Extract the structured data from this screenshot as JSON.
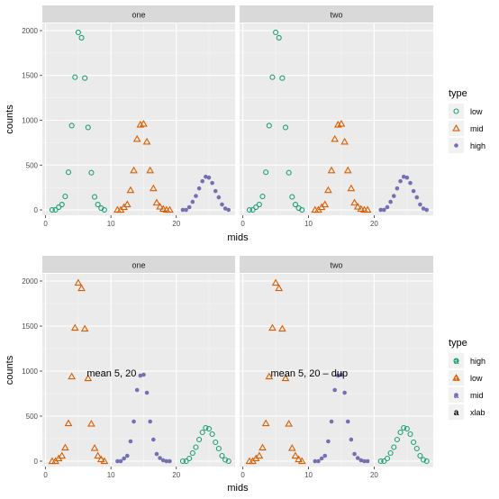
{
  "chart_data": [
    {
      "type": "scatter",
      "facets": [
        "one",
        "two"
      ],
      "xlabel": "mids",
      "ylabel": "counts",
      "xlim": [
        -0.5,
        29
      ],
      "ylim": [
        -60,
        2080
      ],
      "x_ticks": [
        0,
        10,
        20
      ],
      "y_ticks": [
        0,
        500,
        1000,
        1500,
        2000
      ],
      "grid": true,
      "legend_position": "right",
      "legend_title": "type",
      "series": [
        {
          "name": "low",
          "shape": "circle",
          "color": "#1B9E77",
          "x": [
            1,
            1.5,
            2,
            2.5,
            3,
            3.5,
            4,
            4.5,
            5,
            5.5,
            6,
            6.5,
            7,
            7.5,
            8,
            8.5,
            9
          ],
          "y": [
            0,
            0,
            30,
            60,
            150,
            420,
            940,
            1480,
            1980,
            1920,
            1470,
            920,
            415,
            145,
            60,
            20,
            0
          ]
        },
        {
          "name": "mid",
          "shape": "triangle",
          "color": "#D95F02",
          "x": [
            11,
            11.5,
            12,
            12.5,
            13,
            13.5,
            14,
            14.5,
            15,
            15.5,
            16,
            16.5,
            17,
            17.5,
            18,
            18.5,
            19
          ],
          "y": [
            0,
            0,
            30,
            60,
            220,
            440,
            790,
            950,
            960,
            760,
            440,
            240,
            80,
            35,
            10,
            0,
            0
          ]
        },
        {
          "name": "high",
          "shape": "dot",
          "color": "#7570B3",
          "x": [
            21,
            21.5,
            22,
            22.5,
            23,
            23.5,
            24,
            24.5,
            25,
            25.5,
            26,
            26.5,
            27,
            27.5,
            28
          ],
          "y": [
            0,
            0,
            30,
            90,
            155,
            240,
            320,
            370,
            360,
            300,
            210,
            140,
            60,
            15,
            0
          ]
        }
      ]
    },
    {
      "type": "scatter",
      "facets": [
        "one",
        "two"
      ],
      "xlabel": "mids",
      "ylabel": "counts",
      "xlim": [
        -0.5,
        29
      ],
      "ylim": [
        -60,
        2080
      ],
      "x_ticks": [
        0,
        10,
        20
      ],
      "y_ticks": [
        0,
        500,
        1000,
        1500,
        2000
      ],
      "grid": true,
      "legend_position": "right",
      "legend_title": "type",
      "annotations": [
        {
          "facet": "one",
          "text": "mean 5, 20",
          "x": 10.1,
          "y": 980
        },
        {
          "facet": "two",
          "text": "mean 5, 20 – dup",
          "x": 10.1,
          "y": 980
        }
      ],
      "series": [
        {
          "name": "high",
          "shape": "circle",
          "color": "#1B9E77",
          "x": [
            21,
            21.5,
            22,
            22.5,
            23,
            23.5,
            24,
            24.5,
            25,
            25.5,
            26,
            26.5,
            27,
            27.5,
            28
          ],
          "y": [
            0,
            0,
            30,
            90,
            155,
            240,
            320,
            370,
            360,
            300,
            210,
            140,
            60,
            15,
            0
          ]
        },
        {
          "name": "low",
          "shape": "triangle",
          "color": "#D95F02",
          "x": [
            1,
            1.5,
            2,
            2.5,
            3,
            3.5,
            4,
            4.5,
            5,
            5.5,
            6,
            6.5,
            7,
            7.5,
            8,
            8.5,
            9
          ],
          "y": [
            0,
            0,
            30,
            60,
            150,
            420,
            940,
            1480,
            1980,
            1920,
            1470,
            920,
            415,
            145,
            60,
            20,
            0
          ]
        },
        {
          "name": "mid",
          "shape": "dot",
          "color": "#7570B3",
          "x": [
            11,
            11.5,
            12,
            12.5,
            13,
            13.5,
            14,
            14.5,
            15,
            15.5,
            16,
            16.5,
            17,
            17.5,
            18,
            18.5,
            19
          ],
          "y": [
            0,
            0,
            30,
            60,
            220,
            440,
            790,
            950,
            960,
            760,
            440,
            240,
            80,
            35,
            10,
            0,
            0
          ]
        },
        {
          "name": "xlab",
          "shape": "letter",
          "color": "#000000",
          "x": [],
          "y": []
        }
      ]
    }
  ]
}
